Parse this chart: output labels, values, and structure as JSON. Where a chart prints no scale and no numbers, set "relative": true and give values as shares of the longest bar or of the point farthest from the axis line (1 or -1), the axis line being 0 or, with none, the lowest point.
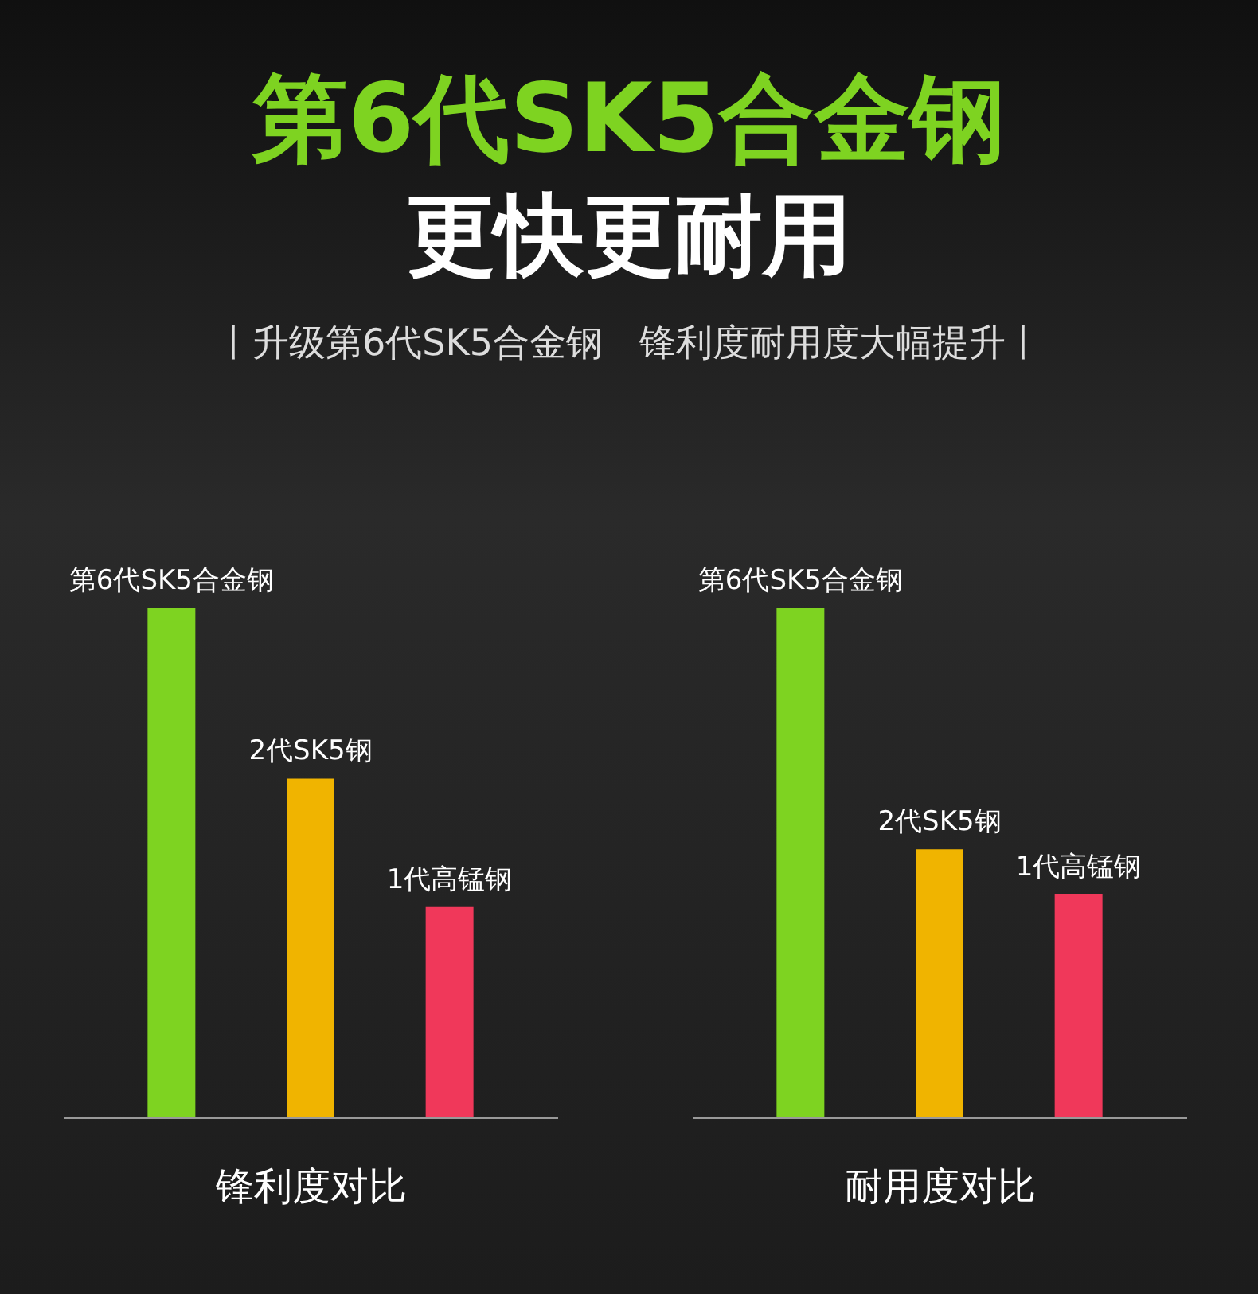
{
  "chart_data": [
    {
      "type": "bar",
      "title": "第6代SK5合金钢",
      "subtitle": "更快更耐用",
      "annotations": [
        "丨升级第6代SK5合金钢　锋利度耐用度大幅提升丨"
      ],
      "relative": true,
      "xlabel": "锋利度对比",
      "categories": [
        "第6代SK5合金钢",
        "2代SK5钢",
        "1代高锰钢"
      ],
      "values": [
        1,
        0.665,
        0.413
      ],
      "colors": [
        "#7ed321",
        "#f0b400",
        "#f0385a"
      ],
      "grid": false
    },
    {
      "type": "bar",
      "relative": true,
      "xlabel": "耐用度对比",
      "categories": [
        "第6代SK5合金钢",
        "2代SK5钢",
        "1代高锰钢"
      ],
      "values": [
        1,
        0.526,
        0.438
      ],
      "colors": [
        "#7ed321",
        "#f0b400",
        "#f0385a"
      ],
      "grid": false
    }
  ]
}
